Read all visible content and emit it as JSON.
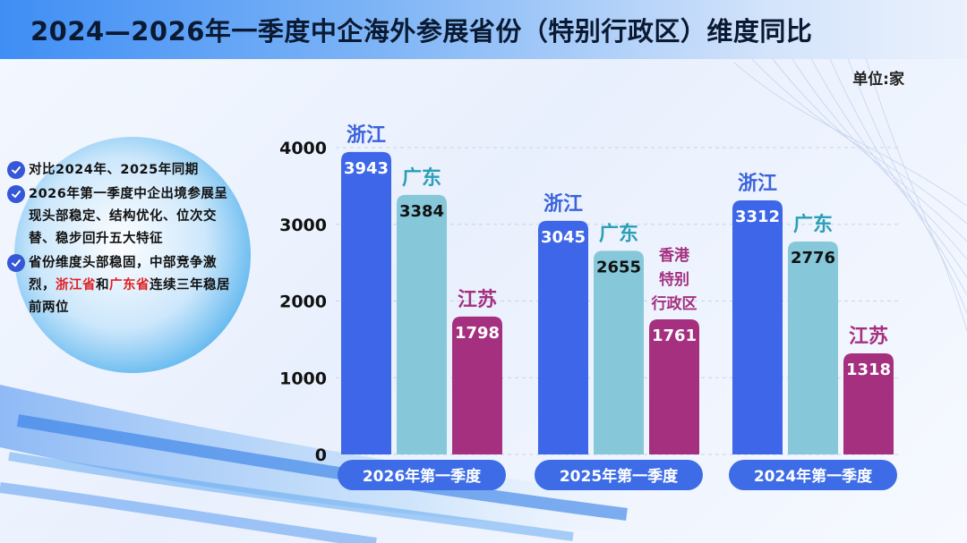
{
  "title": "2024—2026年一季度中企海外参展省份（特别行政区）维度同比",
  "unit": "单位:家",
  "notes": [
    {
      "parts": [
        {
          "text": "对比2024年、2025年同期",
          "highlight": false
        }
      ]
    },
    {
      "parts": [
        {
          "text": "2026年第一季度中企出境参展呈现头部稳定、结构优化、位次交替、稳步回升五大特征",
          "highlight": false
        }
      ]
    },
    {
      "parts": [
        {
          "text": "省份维度头部稳固，中部竞争激烈，",
          "highlight": false
        },
        {
          "text": "浙江省",
          "highlight": true
        },
        {
          "text": "和",
          "highlight": false
        },
        {
          "text": "广东省",
          "highlight": true
        },
        {
          "text": "连续三年稳居前两位",
          "highlight": false
        }
      ]
    }
  ],
  "colors": {
    "blue": "#3e66e8",
    "cyan": "#86c8da",
    "magenta": "#a4307f",
    "label_blue": "#3a62dd",
    "label_cyan": "#2a9fb8",
    "label_magenta": "#a4307f",
    "highlight": "#e02020",
    "category_pill": "#3d6ce6"
  },
  "chart_data": {
    "type": "bar",
    "ylim": [
      0,
      4000
    ],
    "yticks": [
      "0",
      "1000",
      "2000",
      "3000",
      "4000"
    ],
    "grid": true,
    "categories": [
      "2026年第一季度",
      "2025年第一季度",
      "2024年第一季度"
    ],
    "groups": [
      {
        "category": "2026年第一季度",
        "bars": [
          {
            "name": "浙江",
            "value": 3943,
            "color_key": "blue"
          },
          {
            "name": "广东",
            "value": 3384,
            "color_key": "cyan"
          },
          {
            "name": "江苏",
            "value": 1798,
            "color_key": "magenta"
          }
        ]
      },
      {
        "category": "2025年第一季度",
        "bars": [
          {
            "name": "浙江",
            "value": 3045,
            "color_key": "blue"
          },
          {
            "name": "广东",
            "value": 2655,
            "color_key": "cyan"
          },
          {
            "name": "香港特别行政区",
            "name_lines": [
              "香港",
              "特别",
              "行政区"
            ],
            "value": 1761,
            "color_key": "magenta"
          }
        ]
      },
      {
        "category": "2024年第一季度",
        "bars": [
          {
            "name": "浙江",
            "value": 3312,
            "color_key": "blue"
          },
          {
            "name": "广东",
            "value": 2776,
            "color_key": "cyan"
          },
          {
            "name": "江苏",
            "value": 1318,
            "color_key": "magenta"
          }
        ]
      }
    ]
  }
}
